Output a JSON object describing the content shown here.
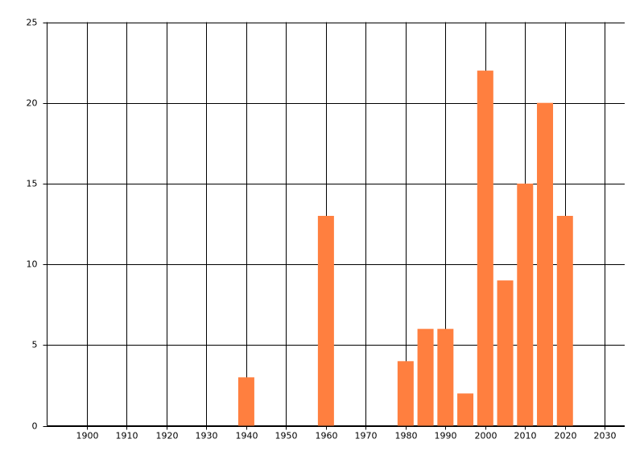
{
  "chart_data": {
    "type": "bar",
    "x": [
      1940,
      1960,
      1980,
      1985,
      1990,
      1995,
      2000,
      2005,
      2010,
      2015,
      2020
    ],
    "values": [
      3,
      13,
      4,
      6,
      6,
      2,
      22,
      9,
      15,
      20,
      13
    ],
    "color": "#ff7f3f",
    "xlim": [
      1890,
      2035
    ],
    "xticks": [
      1900,
      1910,
      1920,
      1930,
      1940,
      1950,
      1960,
      1970,
      1980,
      1990,
      2000,
      2010,
      2020,
      2030
    ],
    "ylim": [
      0,
      25
    ],
    "yticks": [
      0,
      5,
      10,
      15,
      20,
      25
    ],
    "grid": true
  }
}
